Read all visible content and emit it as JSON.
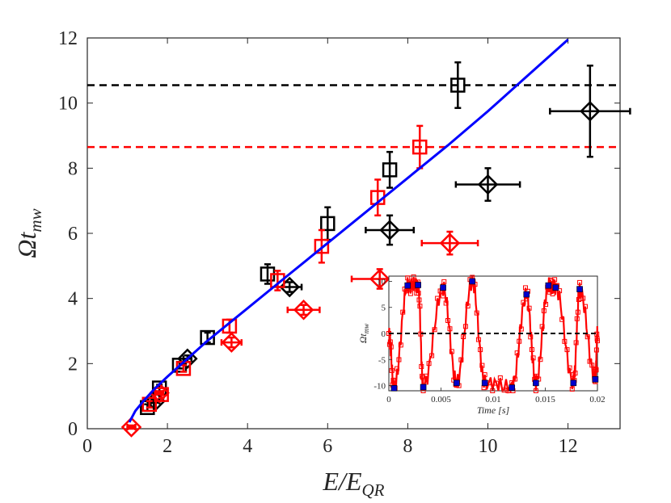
{
  "chart_data": [
    {
      "type": "scatter",
      "title": "",
      "xlabel": "E/E_QR",
      "ylabel": "Ωt_mw",
      "xlabel_parts": {
        "main": "E/E",
        "sub": "QR"
      },
      "ylabel_parts": {
        "main": "Ωt",
        "sub": "mw"
      },
      "xlim": [
        0,
        13.3
      ],
      "ylim": [
        0,
        12
      ],
      "xticks": [
        0,
        2,
        4,
        6,
        8,
        10,
        12
      ],
      "yticks": [
        0,
        2,
        4,
        6,
        8,
        10,
        12
      ],
      "grid": false,
      "series": [
        {
          "name": "black squares",
          "marker": "square",
          "color": "#000000",
          "points": [
            {
              "x": 1.5,
              "y": 0.65,
              "xerr": 0,
              "yerr": 0.1
            },
            {
              "x": 1.8,
              "y": 1.25,
              "xerr": 0,
              "yerr": 0.1
            },
            {
              "x": 2.3,
              "y": 1.95,
              "xerr": 0,
              "yerr": 0.1
            },
            {
              "x": 3.0,
              "y": 2.8,
              "xerr": 0,
              "yerr": 0.15
            },
            {
              "x": 4.5,
              "y": 4.75,
              "xerr": 0,
              "yerr": 0.3
            },
            {
              "x": 6.0,
              "y": 6.3,
              "xerr": 0,
              "yerr": 0.5
            },
            {
              "x": 7.55,
              "y": 7.95,
              "xerr": 0,
              "yerr": 0.55
            },
            {
              "x": 9.25,
              "y": 10.55,
              "xerr": 0,
              "yerr": 0.7
            }
          ]
        },
        {
          "name": "black diamonds",
          "marker": "diamond",
          "color": "#000000",
          "points": [
            {
              "x": 1.7,
              "y": 0.85,
              "xerr": 0.1,
              "yerr": 0.05
            },
            {
              "x": 2.5,
              "y": 2.15,
              "xerr": 0.1,
              "yerr": 0.1
            },
            {
              "x": 5.05,
              "y": 4.35,
              "xerr": 0.3,
              "yerr": 0.15
            },
            {
              "x": 7.55,
              "y": 6.1,
              "xerr": 0.6,
              "yerr": 0.45
            },
            {
              "x": 10.0,
              "y": 7.5,
              "xerr": 0.8,
              "yerr": 0.5
            },
            {
              "x": 12.55,
              "y": 9.75,
              "xerr": 1.0,
              "yerr": 1.4
            }
          ]
        },
        {
          "name": "red squares",
          "marker": "square",
          "color": "#ff0000",
          "points": [
            {
              "x": 1.55,
              "y": 0.75,
              "xerr": 0,
              "yerr": 0.1
            },
            {
              "x": 1.85,
              "y": 1.05,
              "xerr": 0,
              "yerr": 0.1
            },
            {
              "x": 2.4,
              "y": 1.85,
              "xerr": 0,
              "yerr": 0.1
            },
            {
              "x": 3.55,
              "y": 3.15,
              "xerr": 0,
              "yerr": 0.2
            },
            {
              "x": 4.75,
              "y": 4.55,
              "xerr": 0,
              "yerr": 0.3
            },
            {
              "x": 5.85,
              "y": 5.6,
              "xerr": 0,
              "yerr": 0.5
            },
            {
              "x": 7.25,
              "y": 7.1,
              "xerr": 0,
              "yerr": 0.55
            },
            {
              "x": 8.3,
              "y": 8.65,
              "xerr": 0,
              "yerr": 0.65
            }
          ]
        },
        {
          "name": "red diamonds",
          "marker": "diamond",
          "color": "#ff0000",
          "points": [
            {
              "x": 1.1,
              "y": 0.05,
              "xerr": 0.1,
              "yerr": 0.05
            },
            {
              "x": 1.8,
              "y": 1.1,
              "xerr": 0.1,
              "yerr": 0.05
            },
            {
              "x": 3.6,
              "y": 2.65,
              "xerr": 0.25,
              "yerr": 0.15
            },
            {
              "x": 5.4,
              "y": 3.65,
              "xerr": 0.4,
              "yerr": 0.15
            },
            {
              "x": 7.3,
              "y": 4.6,
              "xerr": 0.7,
              "yerr": 0.3
            },
            {
              "x": 9.05,
              "y": 5.7,
              "xerr": 0.7,
              "yerr": 0.35
            }
          ]
        }
      ],
      "fit_line": {
        "name": "fit",
        "color": "#0000ff",
        "x": [
          1.05,
          1.2,
          1.4,
          1.7,
          2.0,
          2.5,
          3.0,
          3.5,
          4.0,
          5.0,
          6.0,
          7.0,
          8.0,
          9.0,
          10.0,
          11.0,
          12.0
        ],
        "y": [
          0.2,
          0.55,
          0.85,
          1.25,
          1.6,
          2.15,
          2.7,
          3.2,
          3.7,
          4.7,
          5.7,
          6.7,
          7.7,
          8.7,
          9.75,
          10.85,
          11.95
        ]
      },
      "hlines": [
        {
          "y": 10.55,
          "color": "#000000",
          "style": "dashed"
        },
        {
          "y": 8.65,
          "color": "#ff0000",
          "style": "dashed"
        }
      ]
    },
    {
      "type": "line",
      "role": "inset",
      "xlabel": "Time [s]",
      "ylabel": "Ωt_mw",
      "ylabel_parts": {
        "main": "Ωt",
        "sub": "mw"
      },
      "xlim": [
        0,
        0.02
      ],
      "ylim": [
        -11,
        11
      ],
      "xticks": [
        0,
        0.005,
        0.01,
        0.015,
        0.02
      ],
      "xtick_labels": [
        "0",
        "0.005",
        "0.01",
        "0.015",
        "0.02"
      ],
      "yticks": [
        -10,
        -5,
        0,
        5,
        10
      ],
      "ytick_labels": [
        "-10",
        "-5",
        "0",
        "5",
        "10"
      ],
      "zero_line": {
        "y": 0,
        "color": "#000000",
        "style": "dashed"
      },
      "signal_color": "#ff0000",
      "peaks": {
        "color": "#0000cc",
        "max": [
          {
            "x": 0.0018,
            "y": 9.2
          },
          {
            "x": 0.0028,
            "y": 9.3
          },
          {
            "x": 0.0052,
            "y": 8.8
          },
          {
            "x": 0.008,
            "y": 10.0
          },
          {
            "x": 0.0132,
            "y": 7.5
          },
          {
            "x": 0.0153,
            "y": 9.2
          },
          {
            "x": 0.016,
            "y": 8.8
          },
          {
            "x": 0.0183,
            "y": 8.5
          }
        ],
        "min": [
          {
            "x": 0.0005,
            "y": -10.5
          },
          {
            "x": 0.0033,
            "y": -10.3
          },
          {
            "x": 0.0065,
            "y": -9.5
          },
          {
            "x": 0.0092,
            "y": -9.5
          },
          {
            "x": 0.0118,
            "y": -10.4
          },
          {
            "x": 0.0141,
            "y": -9.5
          },
          {
            "x": 0.0177,
            "y": -9.5
          },
          {
            "x": 0.0198,
            "y": -8.8
          }
        ]
      }
    }
  ]
}
